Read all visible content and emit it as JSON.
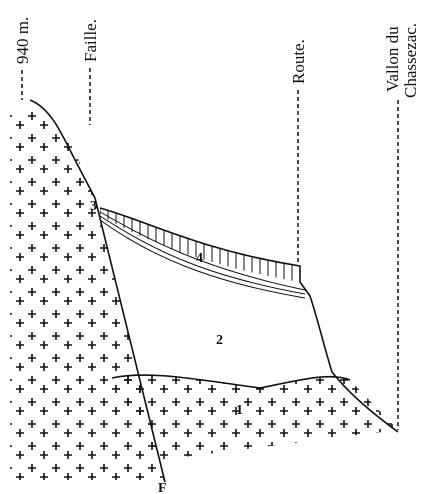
{
  "labels": {
    "elevation": "940 m.",
    "fault": "Faille.",
    "road": "Route.",
    "valley_line1": "Vallon du",
    "valley_line2": "Chassezac."
  },
  "layers": {
    "one": "1",
    "two": "2",
    "three": "3",
    "four": "4"
  },
  "fault_mark": "F"
}
